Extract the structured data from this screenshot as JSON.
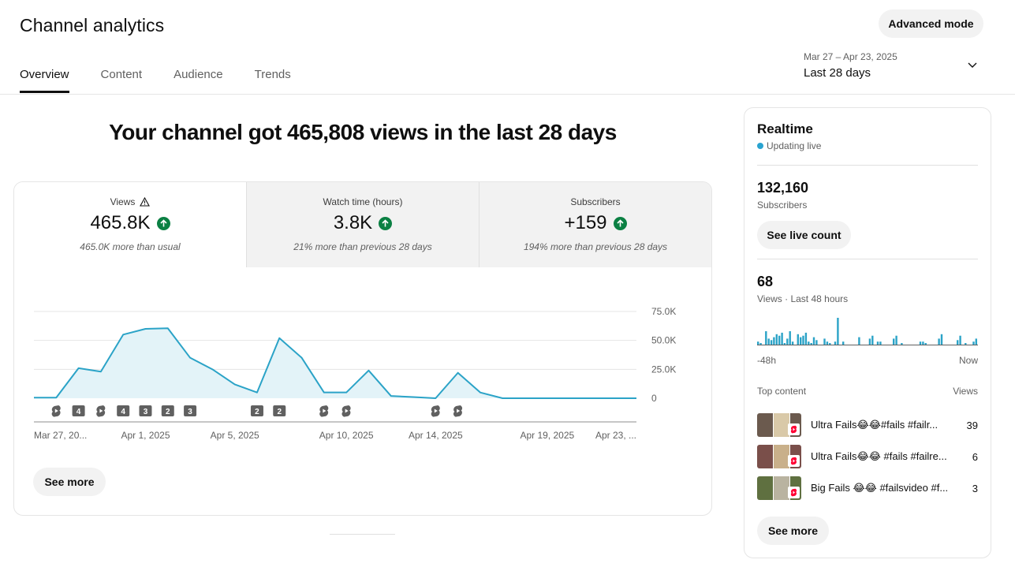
{
  "header": {
    "title": "Channel analytics",
    "advanced_mode_label": "Advanced mode",
    "tabs": [
      {
        "label": "Overview",
        "active": true
      },
      {
        "label": "Content",
        "active": false
      },
      {
        "label": "Audience",
        "active": false
      },
      {
        "label": "Trends",
        "active": false
      }
    ],
    "date_picker": {
      "range": "Mar 27 – Apr 23, 2025",
      "label": "Last 28 days",
      "icon": "chevron-down-icon"
    }
  },
  "main": {
    "headline": "Your channel got 465,808 views in the last 28 days",
    "metrics": [
      {
        "label": "Views",
        "value": "465.8K",
        "note": "465.0K more than usual",
        "trend": "up",
        "warning": true,
        "active": true
      },
      {
        "label": "Watch time (hours)",
        "value": "3.8K",
        "note": "21% more than previous 28 days",
        "trend": "up",
        "warning": false,
        "active": false
      },
      {
        "label": "Subscribers",
        "value": "+159",
        "note": "194% more than previous 28 days",
        "trend": "up",
        "warning": false,
        "active": false
      }
    ],
    "see_more_label": "See more"
  },
  "chart_data": {
    "type": "area",
    "series": [
      {
        "values": [
          500,
          500,
          26000,
          23000,
          55000,
          60000,
          60500,
          35000,
          25000,
          12000,
          5000,
          52000,
          35000,
          5000,
          5000,
          24000,
          2000,
          1000,
          0,
          22000,
          5000,
          0,
          0,
          0,
          0,
          0,
          0,
          0
        ]
      }
    ],
    "ylim": [
      0,
      75000
    ],
    "y_ticks": [
      "75.0K",
      "50.0K",
      "25.0K",
      "0"
    ],
    "x_tick_labels": [
      {
        "day": 0,
        "label": "Mar 27, 20..."
      },
      {
        "day": 5,
        "label": "Apr 1, 2025"
      },
      {
        "day": 9,
        "label": "Apr 5, 2025"
      },
      {
        "day": 14,
        "label": "Apr 10, 2025"
      },
      {
        "day": 18,
        "label": "Apr 14, 2025"
      },
      {
        "day": 23,
        "label": "Apr 19, 2025"
      },
      {
        "day": 27,
        "label": "Apr 23, ..."
      }
    ],
    "markers": [
      {
        "day": 1,
        "kind": "shorts"
      },
      {
        "day": 2,
        "kind": "count",
        "text": "4"
      },
      {
        "day": 3,
        "kind": "shorts"
      },
      {
        "day": 4,
        "kind": "count",
        "text": "4"
      },
      {
        "day": 5,
        "kind": "count",
        "text": "3"
      },
      {
        "day": 6,
        "kind": "count",
        "text": "2"
      },
      {
        "day": 7,
        "kind": "count",
        "text": "3"
      },
      {
        "day": 10,
        "kind": "count",
        "text": "2"
      },
      {
        "day": 11,
        "kind": "count",
        "text": "2"
      },
      {
        "day": 13,
        "kind": "shorts"
      },
      {
        "day": 14,
        "kind": "shorts"
      },
      {
        "day": 18,
        "kind": "shorts"
      },
      {
        "day": 19,
        "kind": "shorts"
      }
    ],
    "colors": {
      "line": "#2ba3c7",
      "fill": "#e3f3f8",
      "grid": "#e5e5e5"
    },
    "grid": true,
    "legend": "none"
  },
  "realtime": {
    "title": "Realtime",
    "status": "Updating live",
    "subscribers_value": "132,160",
    "subscribers_label": "Subscribers",
    "see_live_count_label": "See live count",
    "views_value": "68",
    "views_label": "Views · Last 48 hours",
    "mini_chart": {
      "bars": [
        2,
        1,
        0,
        9,
        4,
        3,
        5,
        7,
        6,
        8,
        1,
        4,
        9,
        2,
        0,
        7,
        5,
        6,
        8,
        2,
        1,
        5,
        3,
        0,
        0,
        4,
        2,
        1,
        0,
        2,
        18,
        0,
        2,
        0,
        0,
        0,
        0,
        0,
        5,
        0,
        0,
        0,
        4,
        6,
        0,
        2,
        2,
        0,
        0,
        0,
        0,
        4,
        6,
        0,
        1,
        0,
        0,
        0,
        0,
        0,
        0,
        2,
        2,
        1,
        0,
        0,
        0,
        0,
        4,
        7,
        0,
        0,
        0,
        0,
        0,
        3,
        6,
        0,
        1,
        0,
        0,
        2,
        4
      ],
      "left_label": "-48h",
      "right_label": "Now",
      "color": "#2ba3c7"
    },
    "top_content_label": "Top content",
    "views_col_label": "Views",
    "top_content": [
      {
        "title": "Ultra Fails😂😂#fails #failr...",
        "views": "39",
        "thumb_color": "#6b5a4e"
      },
      {
        "title": "Ultra Fails😂😂 #fails #failre...",
        "views": "6",
        "thumb_color": "#7a4f4a"
      },
      {
        "title": "Big Fails 😂😂 #failsvideo #f...",
        "views": "3",
        "thumb_color": "#5f7040"
      }
    ],
    "see_more_label": "See more"
  }
}
